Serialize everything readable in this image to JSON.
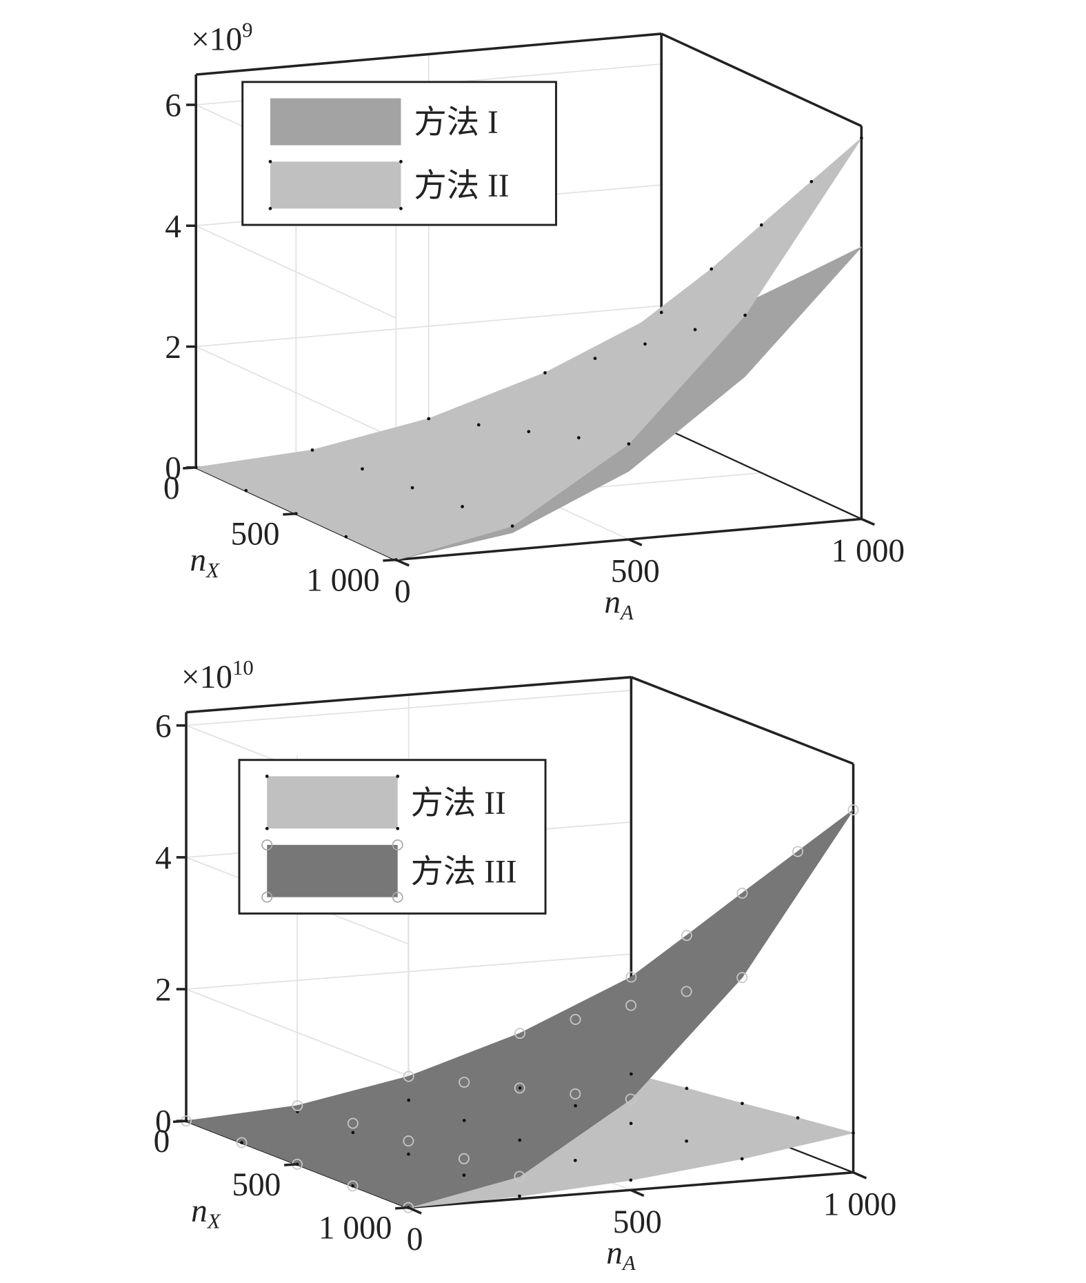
{
  "chart_data": [
    {
      "type": "surface3d",
      "scale_label": {
        "text": "×10",
        "exponent": "9"
      },
      "x_label": {
        "text": "n",
        "subscript": "A"
      },
      "y_label": {
        "text": "n",
        "subscript": "X"
      },
      "x": [
        0,
        250,
        500,
        750,
        1000
      ],
      "y": [
        0,
        250,
        500,
        750,
        1000
      ],
      "xlim": [
        0,
        1000
      ],
      "ylim": [
        0,
        1000
      ],
      "zlim": [
        0,
        6.5
      ],
      "xticks": [
        0,
        500,
        {
          "value": 1000,
          "label": "1 000"
        }
      ],
      "yticks": [
        0,
        500,
        {
          "value": 1000,
          "label": "1 000"
        }
      ],
      "zticks": [
        0,
        2,
        4,
        6
      ],
      "grid": true,
      "legend": "upper left",
      "series": [
        {
          "name": "方法 I",
          "color": "#a3a3a3",
          "marker": "none",
          "z": [
            [
              0,
              0.08,
              0.34,
              0.76,
              1.35
            ],
            [
              0,
              0.13,
              0.53,
              1.2,
              2.14
            ],
            [
              0,
              0.18,
              0.73,
              1.65,
              2.93
            ],
            [
              0,
              0.23,
              0.93,
              2.09,
              3.71
            ],
            [
              0,
              0.28,
              1.13,
              2.53,
              4.5
            ]
          ]
        },
        {
          "name": "方法 II",
          "color": "#c0c0c0",
          "marker": "dot",
          "z": [
            [
              0,
              0.12,
              0.47,
              1.06,
              1.89
            ],
            [
              0,
              0.19,
              0.75,
              1.68,
              2.99
            ],
            [
              0,
              0.26,
              1.02,
              2.3,
              4.1
            ],
            [
              0,
              0.33,
              1.3,
              2.92,
              5.2
            ],
            [
              0,
              0.39,
              1.58,
              3.54,
              6.3
            ]
          ]
        }
      ]
    },
    {
      "type": "surface3d",
      "scale_label": {
        "text": "×10",
        "exponent": "10"
      },
      "x_label": {
        "text": "n",
        "subscript": "A"
      },
      "y_label": {
        "text": "n",
        "subscript": "X"
      },
      "x": [
        0,
        250,
        500,
        750,
        1000
      ],
      "y": [
        0,
        250,
        500,
        750,
        1000
      ],
      "xlim": [
        0,
        1000
      ],
      "ylim": [
        0,
        1000
      ],
      "zlim": [
        0,
        6.2
      ],
      "xticks": [
        0,
        500,
        {
          "value": 1000,
          "label": "1 000"
        }
      ],
      "yticks": [
        0,
        500,
        {
          "value": 1000,
          "label": "1 000"
        }
      ],
      "zticks": [
        0,
        2,
        4,
        6
      ],
      "grid": true,
      "legend": "upper left",
      "series": [
        {
          "name": "方法 II",
          "color": "#c0c0c0",
          "marker": "dot",
          "z": [
            [
              0,
              0.01,
              0.05,
              0.1,
              0.18
            ],
            [
              0,
              0.02,
              0.07,
              0.16,
              0.29
            ],
            [
              0,
              0.02,
              0.1,
              0.22,
              0.39
            ],
            [
              0,
              0.03,
              0.12,
              0.28,
              0.5
            ],
            [
              0,
              0.04,
              0.15,
              0.34,
              0.6
            ]
          ]
        },
        {
          "name": "方法 III",
          "color": "#777777",
          "marker": "circle",
          "z": [
            [
              0,
              0.1,
              0.41,
              0.93,
              1.65
            ],
            [
              0,
              0.16,
              0.65,
              1.47,
              2.61
            ],
            [
              0,
              0.22,
              0.89,
              2.01,
              3.58
            ],
            [
              0,
              0.28,
              1.13,
              2.55,
              4.54
            ],
            [
              0,
              0.34,
              1.38,
              3.09,
              5.5
            ]
          ]
        }
      ]
    }
  ]
}
